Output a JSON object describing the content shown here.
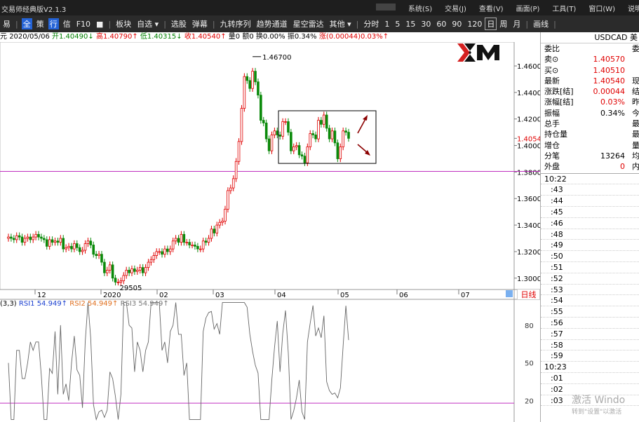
{
  "window": {
    "title": "交易师经典版V2.1.3",
    "menu": [
      "系统(S)",
      "交易(J)",
      "查看(V)",
      "画面(P)",
      "工具(T)",
      "窗口(W)",
      "说明书(H)"
    ]
  },
  "toolbar": {
    "items": [
      "易",
      "|",
      "全",
      "策",
      "行",
      "信",
      "F10",
      "■",
      "|",
      "板块",
      "自选 ▾",
      "|",
      "选股",
      "弹幕",
      "|",
      "九转序列",
      "趋势通道",
      "星空雷达",
      "其他 ▾",
      "|",
      "分时",
      "1",
      "5",
      "15",
      "30",
      "60",
      "90",
      "120",
      "日",
      "周",
      "月",
      "|",
      "画线",
      "|"
    ],
    "active": "日"
  },
  "info": {
    "name": "元",
    "date": "2020/05/06",
    "open_label": "开",
    "open": "1.40490",
    "high_label": "高",
    "high": "1.40790",
    "low_label": "低",
    "low": "1.40315",
    "close_label": "收",
    "close": "1.40540",
    "volume": "量0",
    "amount": "额0",
    "turnover": "换0.00%",
    "amplitude": "振0.34%",
    "change": "涨(0.00044)0.03%↑"
  },
  "chart_data": {
    "type": "candlestick",
    "symbol": "USDCAD",
    "price_axis": [
      "1.46000",
      "1.44000",
      "1.42000",
      "1.40540",
      "1.40000",
      "1.38000",
      "1.36000",
      "1.34000",
      "1.32000",
      "1.30000"
    ],
    "ylim": [
      1.293,
      1.478
    ],
    "date_axis": [
      "12",
      "2020",
      "02",
      "03",
      "04",
      "05",
      "06",
      "07"
    ],
    "high_marker": "1.46700",
    "low_marker": "29505",
    "horizontal_line": 1.3805,
    "box": {
      "y_top": 1.4262,
      "y_bottom": 1.3865
    },
    "last_price": 1.4054,
    "closes": [
      1.331,
      1.33,
      1.329,
      1.332,
      1.331,
      1.327,
      1.33,
      1.331,
      1.329,
      1.331,
      1.333,
      1.331,
      1.33,
      1.329,
      1.324,
      1.329,
      1.327,
      1.328,
      1.327,
      1.33,
      1.322,
      1.323,
      1.324,
      1.322,
      1.326,
      1.323,
      1.32,
      1.321,
      1.326,
      1.328,
      1.325,
      1.318,
      1.317,
      1.318,
      1.312,
      1.304,
      1.306,
      1.31,
      1.3,
      1.297,
      1.297,
      1.298,
      1.302,
      1.306,
      1.304,
      1.307,
      1.305,
      1.306,
      1.308,
      1.304,
      1.308,
      1.312,
      1.314,
      1.317,
      1.32,
      1.32,
      1.318,
      1.322,
      1.32,
      1.322,
      1.328,
      1.33,
      1.327,
      1.333,
      1.327,
      1.327,
      1.325,
      1.325,
      1.324,
      1.322,
      1.322,
      1.328,
      1.327,
      1.33,
      1.337,
      1.334,
      1.34,
      1.342,
      1.343,
      1.352,
      1.366,
      1.368,
      1.375,
      1.388,
      1.403,
      1.428,
      1.452,
      1.449,
      1.443,
      1.456,
      1.448,
      1.438,
      1.419,
      1.417,
      1.405,
      1.396,
      1.408,
      1.411,
      1.408,
      1.407,
      1.418,
      1.418,
      1.41,
      1.396,
      1.399,
      1.4,
      1.393,
      1.392,
      1.387,
      1.399,
      1.409,
      1.408,
      1.405,
      1.419,
      1.416,
      1.423,
      1.413,
      1.405,
      1.411,
      1.402,
      1.39,
      1.399,
      1.411,
      1.41,
      1.4054
    ],
    "rsi_label": "(3,3)",
    "rsi1": "RSI1 54.949↑",
    "rsi2": "RSI2 54.949↑",
    "rsi3": "RSI3 54.949↑",
    "rsi_axis": [
      "80",
      "50",
      "20"
    ],
    "rsi_ylim": [
      3,
      100
    ],
    "rsi_line": 18
  },
  "panel": {
    "symbol": "USDCAD 美",
    "rows": [
      {
        "lbl": "委比",
        "val": "",
        "ext": "委",
        "c": "k"
      },
      {
        "lbl": "卖⊙",
        "val": "1.40570",
        "ext": "",
        "c": "r"
      },
      {
        "lbl": "买⊙",
        "val": "1.40510",
        "ext": "",
        "c": "r"
      },
      {
        "lbl": "最新",
        "val": "1.40540",
        "ext": "现",
        "c": "r"
      },
      {
        "lbl": "涨跌[结]",
        "val": "0.00044",
        "ext": "结",
        "c": "r"
      },
      {
        "lbl": "涨幅[结]",
        "val": "0.03%",
        "ext": "昨",
        "c": "r"
      },
      {
        "lbl": "振幅",
        "val": "0.34%",
        "ext": "今",
        "c": "k"
      },
      {
        "lbl": "总手",
        "val": "",
        "ext": "最",
        "c": "k"
      },
      {
        "lbl": "持仓量",
        "val": "",
        "ext": "最",
        "c": "k"
      },
      {
        "lbl": "增仓",
        "val": "",
        "ext": "量",
        "c": "k"
      },
      {
        "lbl": "分笔",
        "val": "13264",
        "ext": "均",
        "c": "k"
      },
      {
        "lbl": "外盘",
        "val": "0",
        "ext": "内",
        "c": "r"
      }
    ],
    "ticks": [
      "10:22",
      ":43",
      ":44",
      ":45",
      ":46",
      ":48",
      ":49",
      ":50",
      ":51",
      ":52",
      ":53",
      ":54",
      ":55",
      ":56",
      ":57",
      ":58",
      ":59",
      "10:23",
      ":01",
      ":02",
      ":03"
    ]
  },
  "day_tab": "日线",
  "watermark": {
    "line1": "激活 Windo",
    "line2": "转到\"设置\"以激活"
  }
}
